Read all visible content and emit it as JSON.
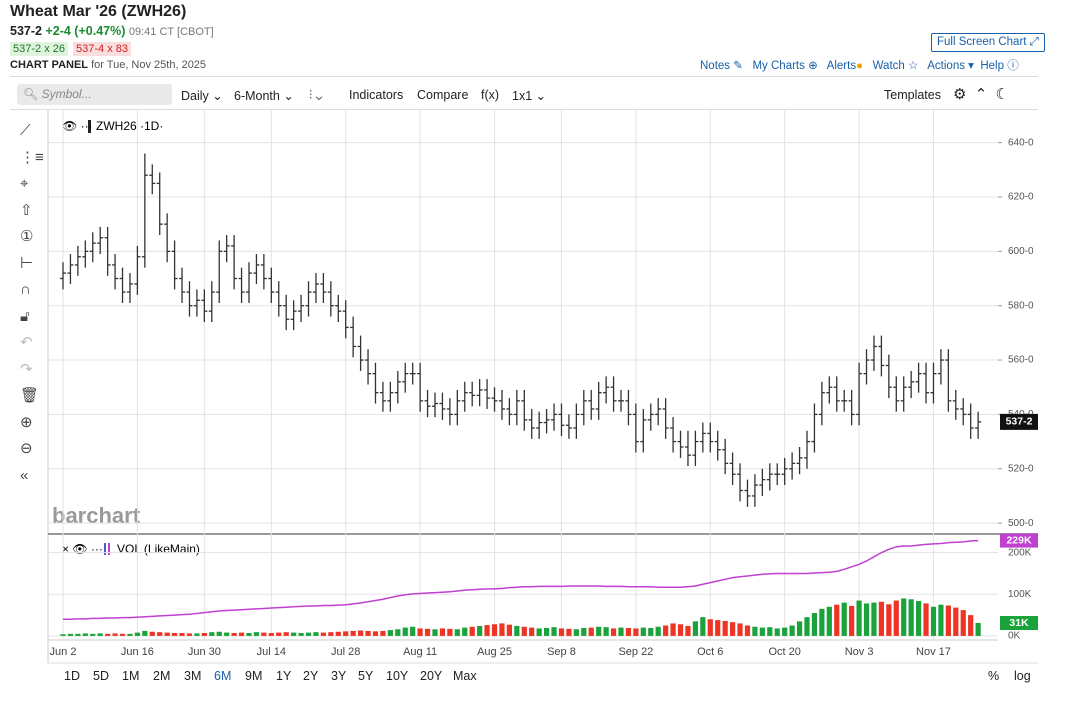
{
  "header": {
    "title": "Wheat Mar '26 (ZWH26)",
    "last": "537-2",
    "change": "+2-4 (+0.47%)",
    "time": "09:41 CT [CBOT]",
    "bid": "537-2 x 26",
    "ask": "537-4 x 83",
    "panel": "CHART PANEL",
    "panel_date": "for Tue, Nov 25th, 2025",
    "full_screen": "Full Screen Chart"
  },
  "links": [
    "Notes",
    "My Charts",
    "Alerts",
    "Watch",
    "Actions",
    "Help"
  ],
  "toolbar": {
    "symbol": "Symbol...",
    "interval": "Daily",
    "period": "6-Month",
    "indicators": "Indicators",
    "compare": "Compare",
    "fx": "f(x)",
    "layout": "1x1",
    "templates": "Templates"
  },
  "ranges": [
    "1D",
    "5D",
    "1M",
    "2M",
    "3M",
    "6M",
    "9M",
    "1Y",
    "2Y",
    "3Y",
    "5Y",
    "10Y",
    "20Y",
    "Max"
  ],
  "active_range": "6M",
  "scale_options": [
    "%",
    "log"
  ],
  "chart_data": {
    "type": "ohlc",
    "title": "ZWH26 ·1D·",
    "watermark": "barchart",
    "color": "#333333",
    "categories": [
      "Jun 2",
      null,
      null,
      null,
      null,
      null,
      null,
      null,
      null,
      null,
      "Jun 16",
      null,
      null,
      null,
      null,
      null,
      null,
      null,
      null,
      "Jun 30",
      null,
      null,
      null,
      null,
      null,
      null,
      null,
      null,
      "Jul 14",
      null,
      null,
      null,
      null,
      null,
      null,
      null,
      null,
      null,
      "Jul 28",
      null,
      null,
      null,
      null,
      null,
      null,
      null,
      null,
      null,
      "Aug 11",
      null,
      null,
      null,
      null,
      null,
      null,
      null,
      null,
      null,
      "Aug 25",
      null,
      null,
      null,
      null,
      null,
      null,
      null,
      null,
      "Sep 8",
      null,
      null,
      null,
      null,
      null,
      null,
      null,
      null,
      null,
      "Sep 22",
      null,
      null,
      null,
      null,
      null,
      null,
      null,
      null,
      null,
      "Oct 6",
      null,
      null,
      null,
      null,
      null,
      null,
      null,
      null,
      null,
      "Oct 20",
      null,
      null,
      null,
      null,
      null,
      null,
      null,
      null,
      null,
      "Nov 3",
      null,
      null,
      null,
      null,
      null,
      null,
      null,
      null,
      null,
      "Nov 17",
      null,
      null,
      null,
      null,
      null,
      null
    ],
    "open": [
      590,
      592,
      595,
      598,
      600,
      603,
      605,
      595,
      590,
      585,
      588,
      598,
      628,
      625,
      610,
      600,
      590,
      585,
      580,
      582,
      578,
      585,
      600,
      602,
      590,
      585,
      592,
      595,
      590,
      585,
      580,
      575,
      578,
      580,
      585,
      588,
      585,
      580,
      578,
      572,
      565,
      560,
      555,
      548,
      545,
      548,
      552,
      555,
      555,
      545,
      543,
      544,
      542,
      540,
      545,
      548,
      547,
      549,
      546,
      545,
      542,
      540,
      545,
      538,
      535,
      537,
      538,
      540,
      536,
      535,
      540,
      545,
      542,
      548,
      550,
      545,
      545,
      540,
      530,
      538,
      540,
      542,
      535,
      530,
      528,
      525,
      530,
      533,
      530,
      527,
      522,
      518,
      512,
      510,
      514,
      516,
      518,
      518,
      520,
      522,
      524,
      530,
      540,
      548,
      550,
      545,
      545,
      540,
      555,
      560,
      565,
      558,
      550,
      545,
      550,
      552,
      555,
      548,
      555,
      560,
      545,
      542,
      540,
      535
    ],
    "high": [
      596,
      599,
      602,
      604,
      607,
      609,
      609,
      599,
      594,
      592,
      602,
      636,
      632,
      629,
      614,
      604,
      594,
      589,
      586,
      586,
      589,
      604,
      606,
      606,
      594,
      596,
      599,
      599,
      594,
      589,
      584,
      582,
      584,
      589,
      592,
      592,
      589,
      584,
      582,
      576,
      569,
      564,
      559,
      552,
      552,
      556,
      559,
      559,
      559,
      549,
      548,
      548,
      546,
      549,
      552,
      552,
      553,
      553,
      550,
      549,
      546,
      549,
      549,
      542,
      541,
      542,
      544,
      544,
      540,
      544,
      549,
      549,
      552,
      554,
      554,
      549,
      549,
      544,
      542,
      544,
      546,
      546,
      539,
      534,
      534,
      534,
      537,
      537,
      534,
      531,
      526,
      522,
      516,
      518,
      520,
      522,
      522,
      524,
      526,
      528,
      534,
      544,
      552,
      554,
      554,
      549,
      549,
      559,
      564,
      569,
      569,
      562,
      554,
      554,
      556,
      559,
      559,
      559,
      564,
      564,
      549,
      546,
      544,
      541
    ],
    "low": [
      586,
      588,
      591,
      594,
      596,
      599,
      591,
      586,
      581,
      581,
      584,
      594,
      621,
      606,
      596,
      586,
      581,
      576,
      576,
      574,
      574,
      581,
      596,
      586,
      581,
      581,
      588,
      586,
      581,
      576,
      571,
      571,
      574,
      576,
      581,
      581,
      576,
      574,
      568,
      561,
      556,
      551,
      544,
      541,
      541,
      544,
      548,
      551,
      541,
      539,
      539,
      538,
      536,
      536,
      541,
      543,
      543,
      542,
      541,
      538,
      536,
      536,
      534,
      531,
      531,
      533,
      534,
      532,
      531,
      531,
      536,
      538,
      538,
      544,
      541,
      541,
      536,
      526,
      526,
      534,
      536,
      531,
      526,
      524,
      521,
      521,
      526,
      526,
      523,
      518,
      514,
      508,
      506,
      506,
      510,
      512,
      514,
      514,
      516,
      518,
      520,
      526,
      536,
      544,
      541,
      541,
      536,
      536,
      551,
      556,
      554,
      546,
      541,
      541,
      546,
      548,
      544,
      544,
      551,
      541,
      538,
      536,
      531,
      531
    ],
    "close": [
      592,
      595,
      598,
      600,
      603,
      605,
      595,
      590,
      585,
      588,
      598,
      628,
      625,
      610,
      600,
      590,
      585,
      580,
      582,
      578,
      585,
      600,
      602,
      590,
      585,
      592,
      595,
      590,
      585,
      580,
      575,
      578,
      580,
      585,
      588,
      585,
      580,
      578,
      572,
      565,
      560,
      555,
      548,
      545,
      548,
      552,
      555,
      555,
      545,
      543,
      544,
      542,
      540,
      545,
      548,
      547,
      549,
      546,
      545,
      542,
      540,
      545,
      538,
      535,
      537,
      538,
      540,
      536,
      535,
      540,
      545,
      542,
      548,
      550,
      545,
      545,
      540,
      530,
      538,
      540,
      542,
      535,
      530,
      528,
      525,
      530,
      533,
      530,
      527,
      522,
      518,
      512,
      510,
      514,
      516,
      518,
      518,
      520,
      522,
      524,
      530,
      540,
      548,
      550,
      545,
      545,
      540,
      555,
      560,
      565,
      558,
      550,
      545,
      550,
      552,
      555,
      548,
      555,
      560,
      545,
      542,
      540,
      535,
      537.25
    ],
    "last_label": "537-2",
    "ylim": [
      496,
      652
    ],
    "yticks": [
      {
        "value": 500,
        "label": "500-0"
      },
      {
        "value": 520,
        "label": "520-0"
      },
      {
        "value": 540,
        "label": "540-0"
      },
      {
        "value": 560,
        "label": "560-0"
      },
      {
        "value": 580,
        "label": "580-0"
      },
      {
        "value": 600,
        "label": "600-0"
      },
      {
        "value": 620,
        "label": "620-0"
      },
      {
        "value": 640,
        "label": "640-0"
      }
    ],
    "grid": true,
    "volume_panel": {
      "title": "VOL (LikeMain)",
      "up_color": "#1aa33a",
      "down_color": "#ee3424",
      "series": [
        {
          "name": "Volume",
          "values": [
            4,
            5,
            5,
            6,
            5,
            6,
            5,
            6,
            5,
            5,
            8,
            12,
            10,
            9,
            8,
            7,
            7,
            6,
            6,
            7,
            9,
            10,
            8,
            7,
            8,
            7,
            9,
            8,
            7,
            8,
            9,
            8,
            7,
            8,
            9,
            8,
            9,
            10,
            11,
            12,
            13,
            12,
            11,
            12,
            14,
            16,
            20,
            22,
            18,
            17,
            16,
            18,
            17,
            16,
            20,
            22,
            24,
            26,
            28,
            30,
            27,
            24,
            22,
            20,
            18,
            19,
            21,
            18,
            17,
            16,
            19,
            20,
            22,
            21,
            18,
            20,
            19,
            18,
            20,
            19,
            22,
            25,
            30,
            28,
            24,
            35,
            45,
            40,
            38,
            36,
            33,
            30,
            25,
            22,
            20,
            21,
            18,
            20,
            25,
            35,
            45,
            55,
            65,
            70,
            75,
            80,
            72,
            85,
            78,
            80,
            82,
            76,
            85,
            90,
            88,
            84,
            78,
            70,
            75,
            73,
            68,
            62,
            50,
            31
          ],
          "last_label": "31K"
        },
        {
          "name": "Open Interest",
          "color": "#c040d0",
          "values": [
            40,
            40,
            41,
            41,
            42,
            42,
            43,
            43,
            44,
            44,
            45,
            46,
            47,
            48,
            49,
            50,
            51,
            52,
            54,
            56,
            58,
            60,
            61,
            62,
            63,
            64,
            65,
            66,
            67,
            68,
            69,
            70,
            71,
            72,
            72,
            73,
            73,
            74,
            75,
            77,
            79,
            82,
            85,
            88,
            92,
            96,
            99,
            101,
            102,
            103,
            104,
            105,
            106,
            108,
            110,
            111,
            112,
            113,
            113,
            114,
            116,
            117,
            118,
            118,
            119,
            119,
            119,
            119,
            120,
            120,
            120,
            120,
            120,
            119,
            119,
            119,
            118,
            118,
            118,
            118,
            117,
            117,
            117,
            117,
            118,
            120,
            124,
            128,
            132,
            136,
            140,
            142,
            144,
            146,
            148,
            149,
            150,
            150,
            150,
            150,
            150,
            151,
            152,
            153,
            155,
            160,
            166,
            172,
            180,
            190,
            200,
            208,
            214,
            216,
            216,
            218,
            220,
            221,
            222,
            224,
            225,
            226,
            228,
            229
          ],
          "last_label": "229K"
        }
      ],
      "ylim": [
        -5,
        240
      ],
      "yticks": [
        {
          "value": 0,
          "label": "0K"
        },
        {
          "value": 100,
          "label": "100K"
        },
        {
          "value": 200,
          "label": "200K"
        }
      ]
    }
  }
}
